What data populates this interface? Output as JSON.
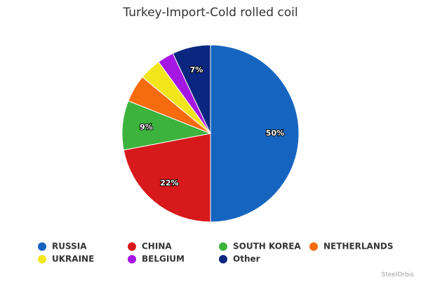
{
  "chart_data": {
    "type": "pie",
    "title": "Turkey-Import-Cold rolled coil",
    "categories": [
      "RUSSIA",
      "CHINA",
      "SOUTH KOREA",
      "NETHERLANDS",
      "UKRAINE",
      "BELGIUM",
      "Other"
    ],
    "values": [
      50,
      22,
      9,
      5,
      4,
      3,
      7
    ],
    "value_labels": [
      "50%",
      "22%",
      "9%",
      null,
      null,
      null,
      "7%"
    ],
    "colors": [
      "#1565c0",
      "#d7191c",
      "#3cb33c",
      "#f76b0f",
      "#f2e61b",
      "#a517e2",
      "#0b2680"
    ],
    "credit": "SteelOrbis"
  }
}
